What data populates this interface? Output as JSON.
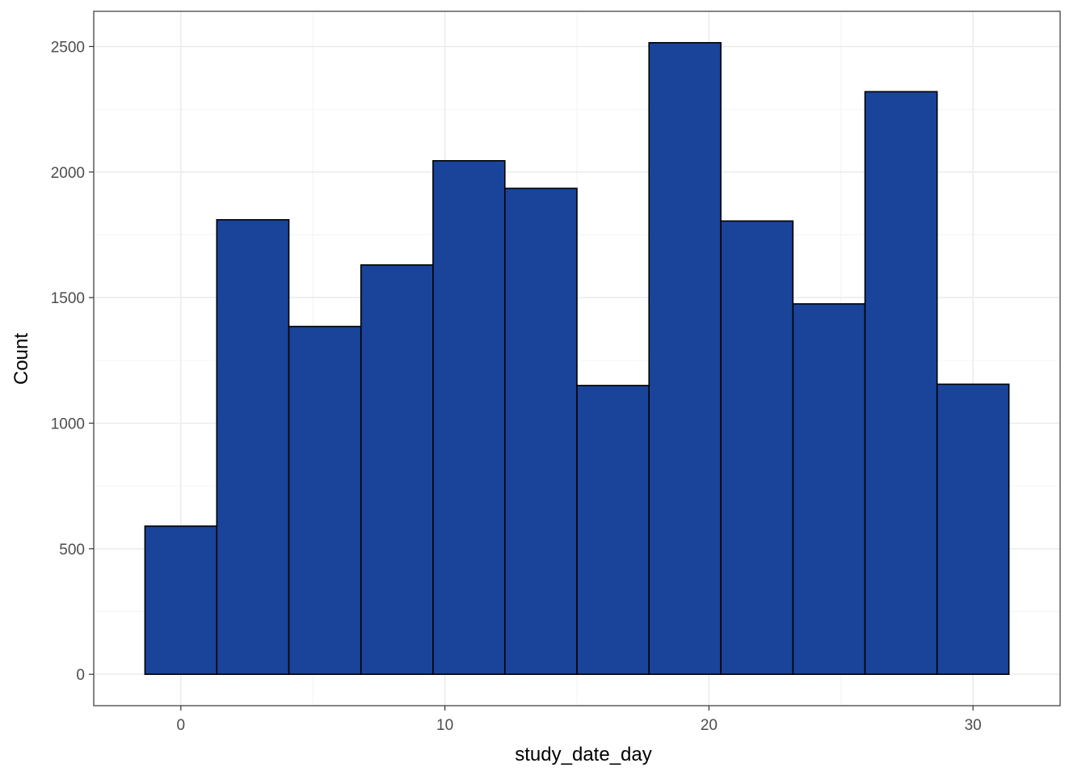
{
  "chart_data": {
    "type": "histogram",
    "xlabel": "study_date_day",
    "ylabel": "Count",
    "xlim": [
      -3.3,
      33.3
    ],
    "ylim": [
      -125,
      2640
    ],
    "x_ticks": [
      0,
      10,
      20,
      30
    ],
    "y_ticks": [
      0,
      500,
      1000,
      1500,
      2000,
      2500
    ],
    "grid": true,
    "bins": [
      {
        "x0": -1.36,
        "x1": 1.36,
        "count": 590
      },
      {
        "x0": 1.36,
        "x1": 4.09,
        "count": 1810
      },
      {
        "x0": 4.09,
        "x1": 6.82,
        "count": 1385
      },
      {
        "x0": 6.82,
        "x1": 9.55,
        "count": 1630
      },
      {
        "x0": 9.55,
        "x1": 12.27,
        "count": 2045
      },
      {
        "x0": 12.27,
        "x1": 15.0,
        "count": 1935
      },
      {
        "x0": 15.0,
        "x1": 17.73,
        "count": 1150
      },
      {
        "x0": 17.73,
        "x1": 20.45,
        "count": 2515
      },
      {
        "x0": 20.45,
        "x1": 23.18,
        "count": 1805
      },
      {
        "x0": 23.18,
        "x1": 25.91,
        "count": 1475
      },
      {
        "x0": 25.91,
        "x1": 28.64,
        "count": 2320
      },
      {
        "x0": 28.64,
        "x1": 31.36,
        "count": 1155
      }
    ],
    "colors": {
      "fill": "#19449A",
      "outline": "#000000"
    }
  }
}
